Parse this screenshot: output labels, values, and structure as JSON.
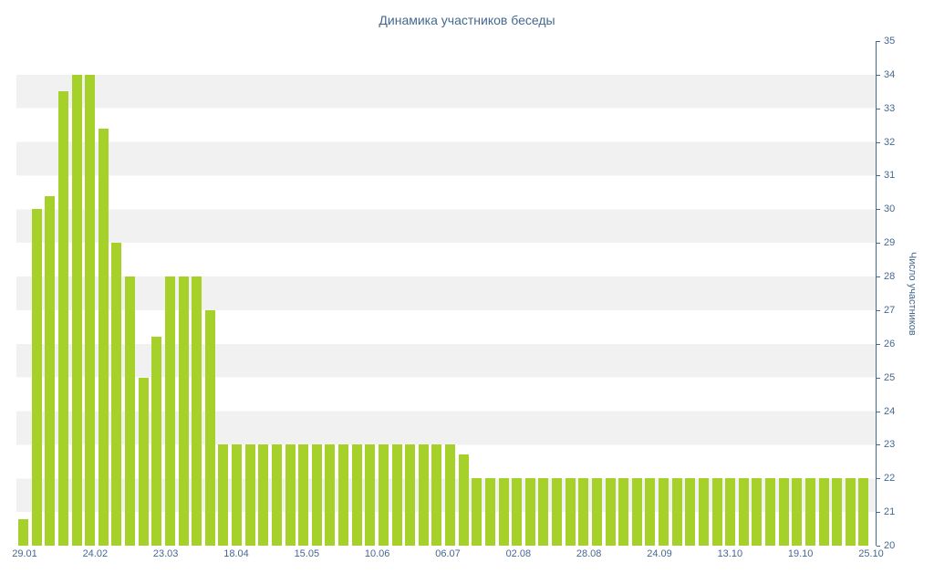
{
  "page": {
    "title": "Динамика участников беседы"
  },
  "colors": {
    "bar": "#a6d12b",
    "stripe": "#f1f1f1",
    "text": "#45688e",
    "axis": "#45688e",
    "background": "#ffffff"
  },
  "chart_data": {
    "type": "bar",
    "title": "Динамика участников беседы",
    "xlabel": "",
    "ylabel": "Число участников",
    "ylim": [
      20,
      35
    ],
    "y_ticks": [
      20,
      21,
      22,
      23,
      24,
      25,
      26,
      27,
      28,
      29,
      30,
      31,
      32,
      33,
      34,
      35
    ],
    "x_tick_labels": [
      "29.01",
      "24.02",
      "23.03",
      "18.04",
      "15.05",
      "10.06",
      "06.07",
      "02.08",
      "28.08",
      "24.09",
      "13.10",
      "19.10",
      "25.10"
    ],
    "grid": "horizontal-stripes",
    "legend": "none",
    "values": [
      20.8,
      30,
      30.4,
      33.5,
      34,
      34,
      32.4,
      29,
      28,
      25,
      26.2,
      28,
      28,
      28,
      27,
      23,
      23,
      23,
      23,
      23,
      23,
      23,
      23,
      23,
      23,
      23,
      23,
      23,
      23,
      23,
      23,
      23,
      23,
      22.7,
      22,
      22,
      22,
      22,
      22,
      22,
      22,
      22,
      22,
      22,
      22,
      22,
      22,
      22,
      22,
      22,
      22,
      22,
      22,
      22,
      22,
      22,
      22,
      22,
      22,
      22,
      22,
      22,
      22,
      22
    ]
  }
}
